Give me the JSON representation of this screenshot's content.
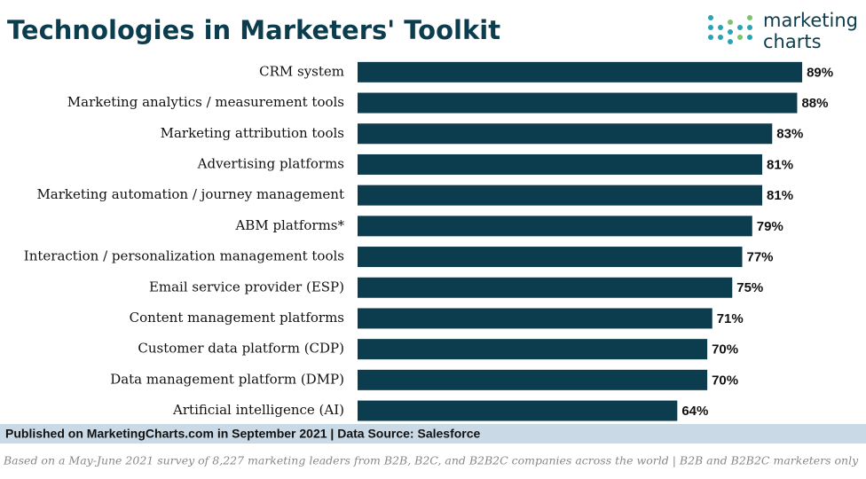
{
  "chart_data": {
    "type": "bar",
    "orientation": "horizontal",
    "title": "Technologies in Marketers' Toolkit",
    "logo": [
      "marketing",
      "charts"
    ],
    "categories": [
      "CRM system",
      "Marketing analytics / measurement tools",
      "Marketing attribution tools",
      "Advertising platforms",
      "Marketing automation / journey management",
      "ABM platforms*",
      "Interaction / personalization management tools",
      "Email service provider (ESP)",
      "Content management platforms",
      "Customer data platform (CDP)",
      "Data management platform (DMP)",
      "Artificial intelligence (AI)"
    ],
    "values": [
      89,
      88,
      83,
      81,
      81,
      79,
      77,
      75,
      71,
      70,
      70,
      64
    ],
    "value_labels": [
      "89%",
      "88%",
      "83%",
      "81%",
      "81%",
      "79%",
      "77%",
      "75%",
      "71%",
      "70%",
      "70%",
      "64%"
    ],
    "color": "#0c3d4e",
    "xlim": [
      0,
      100
    ],
    "source": "Published on MarketingCharts.com in September 2021 | Data Source: Salesforce",
    "note": "Based on a May-June 2021 survey of 8,227 marketing leaders from B2B, B2C, and B2B2C companies across the world | B2B and B2B2C marketers only"
  }
}
